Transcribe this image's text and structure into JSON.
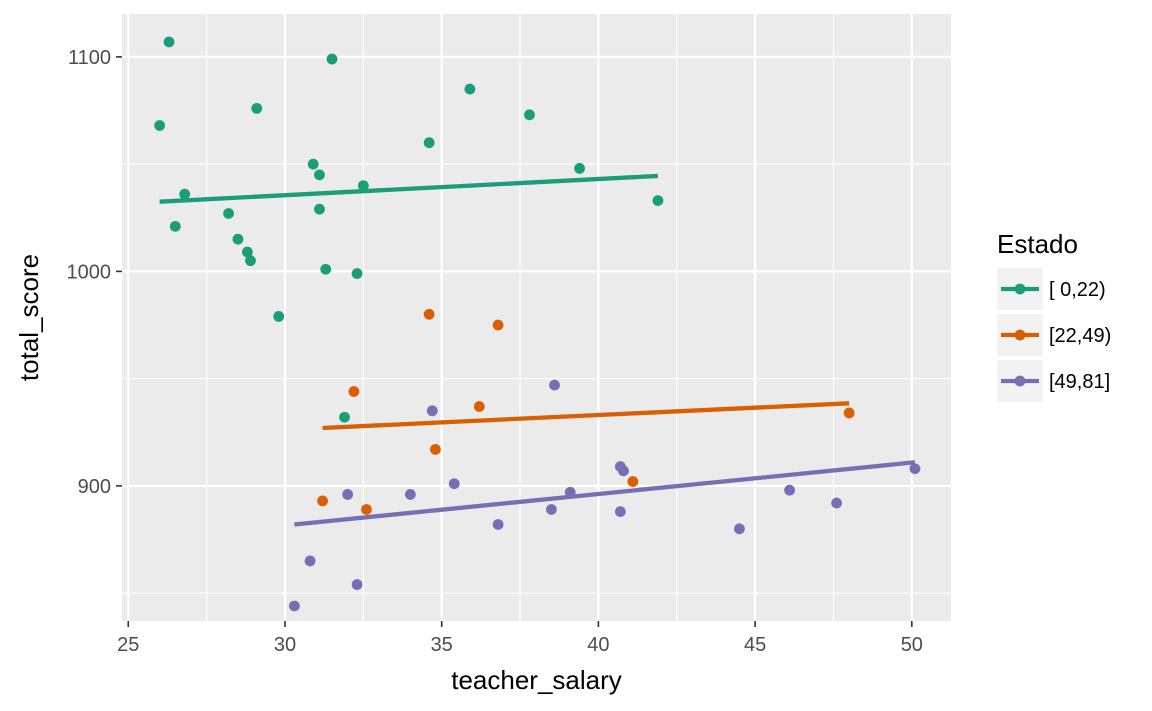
{
  "chart_data": {
    "type": "scatter",
    "xlabel": "teacher_salary",
    "ylabel": "total_score",
    "xlim": [
      24.8,
      51.25
    ],
    "ylim": [
      837,
      1120
    ],
    "x_ticks": [
      25,
      30,
      35,
      40,
      45,
      50
    ],
    "y_ticks": [
      900,
      1000,
      1100
    ],
    "grid": true,
    "background": "#ebebeb",
    "legend": {
      "title": "Estado",
      "position": "right"
    },
    "series": [
      {
        "name": "[ 0,22)",
        "color": "#1b9e77",
        "points": [
          [
            26.3,
            1107
          ],
          [
            26.0,
            1068
          ],
          [
            26.8,
            1036
          ],
          [
            26.5,
            1021
          ],
          [
            28.2,
            1027
          ],
          [
            28.5,
            1015
          ],
          [
            28.8,
            1009
          ],
          [
            28.9,
            1005
          ],
          [
            29.1,
            1076
          ],
          [
            29.8,
            979
          ],
          [
            30.9,
            1050
          ],
          [
            31.1,
            1045
          ],
          [
            31.1,
            1029
          ],
          [
            31.3,
            1001
          ],
          [
            31.5,
            1099
          ],
          [
            31.9,
            932
          ],
          [
            32.3,
            999
          ],
          [
            32.5,
            1040
          ],
          [
            34.6,
            1060
          ],
          [
            35.9,
            1085
          ],
          [
            37.8,
            1073
          ],
          [
            39.4,
            1048
          ],
          [
            41.9,
            1033
          ]
        ],
        "trend": [
          [
            26.0,
            1032.5
          ],
          [
            41.9,
            1044.5
          ]
        ]
      },
      {
        "name": "[22,49)",
        "color": "#d95f02",
        "points": [
          [
            31.2,
            893
          ],
          [
            32.2,
            944
          ],
          [
            32.6,
            889
          ],
          [
            34.6,
            980
          ],
          [
            34.8,
            917
          ],
          [
            36.2,
            937
          ],
          [
            36.8,
            975
          ],
          [
            41.1,
            902
          ],
          [
            48.0,
            934
          ]
        ],
        "trend": [
          [
            31.2,
            927
          ],
          [
            48.0,
            938.5
          ]
        ]
      },
      {
        "name": "[49,81]",
        "color": "#7570b3",
        "points": [
          [
            30.3,
            844
          ],
          [
            30.8,
            865
          ],
          [
            32.0,
            896
          ],
          [
            32.3,
            854
          ],
          [
            34.0,
            896
          ],
          [
            34.7,
            935
          ],
          [
            35.4,
            901
          ],
          [
            36.8,
            882
          ],
          [
            38.5,
            889
          ],
          [
            38.6,
            947
          ],
          [
            39.1,
            897
          ],
          [
            40.7,
            909
          ],
          [
            40.8,
            907
          ],
          [
            40.7,
            888
          ],
          [
            44.5,
            880
          ],
          [
            46.1,
            898
          ],
          [
            47.6,
            892
          ],
          [
            50.1,
            908
          ]
        ],
        "trend": [
          [
            30.3,
            882
          ],
          [
            50.1,
            911
          ]
        ]
      }
    ]
  }
}
